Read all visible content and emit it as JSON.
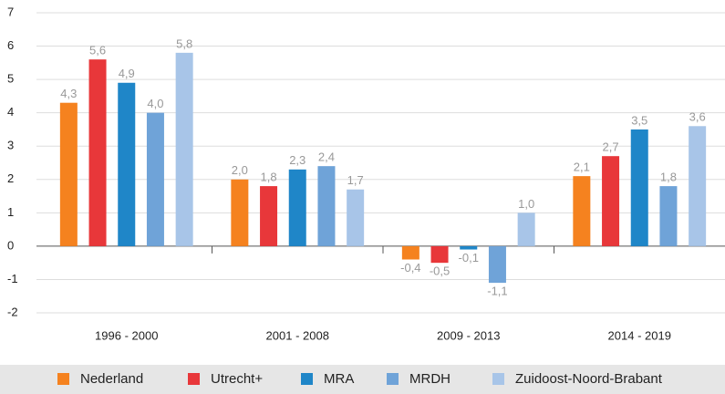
{
  "chart_data": {
    "type": "bar",
    "categories": [
      "1996 - 2000",
      "2001 - 2008",
      "2009 - 2013",
      "2014 - 2019"
    ],
    "series": [
      {
        "name": "Nederland",
        "color": "#f5821f",
        "values": [
          4.3,
          2.0,
          -0.4,
          2.1
        ],
        "value_labels": [
          "4,3",
          "2,0",
          "-0,4",
          "2,1"
        ]
      },
      {
        "name": "Utrecht+",
        "color": "#e8373a",
        "values": [
          5.6,
          1.8,
          -0.5,
          2.7
        ],
        "value_labels": [
          "5,6",
          "1,8",
          "-0,5",
          "2,7"
        ]
      },
      {
        "name": "MRA",
        "color": "#1f86c8",
        "values": [
          4.9,
          2.3,
          -0.1,
          3.5
        ],
        "value_labels": [
          "4,9",
          "2,3",
          "-0,1",
          "3,5"
        ]
      },
      {
        "name": "MRDH",
        "color": "#6fa3d8",
        "values": [
          4.0,
          2.4,
          -1.1,
          1.8
        ],
        "value_labels": [
          "4,0",
          "2,4",
          "-1,1",
          "1,8"
        ]
      },
      {
        "name": "Zuidoost-Noord-Brabant",
        "color": "#a8c5e8",
        "values": [
          5.8,
          1.7,
          1.0,
          3.6
        ],
        "value_labels": [
          "5,8",
          "1,7",
          "1,0",
          "3,6"
        ]
      }
    ],
    "ylim": [
      -2,
      7
    ],
    "yticks": [
      -2,
      -1,
      0,
      1,
      2,
      3,
      4,
      5,
      6,
      7
    ],
    "grid": true
  }
}
